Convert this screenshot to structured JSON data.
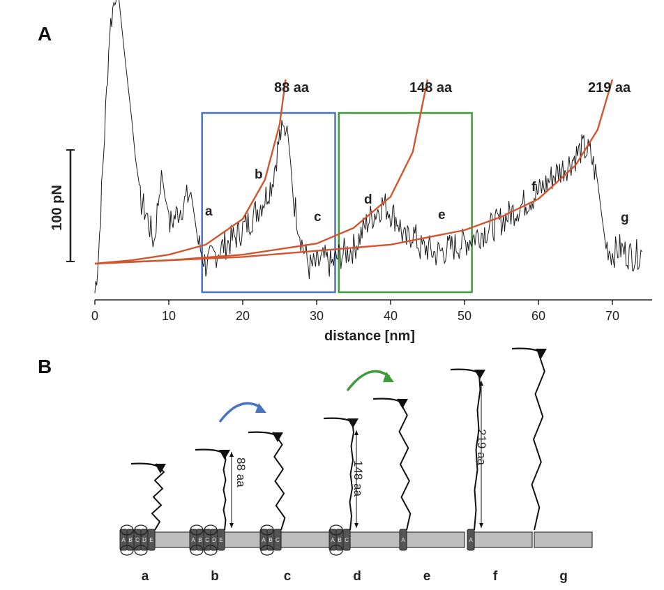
{
  "panelA": {
    "label": "A",
    "scale_bar_label": "100 pN",
    "x_axis_title": "distance [nm]",
    "x_ticks": [
      "0",
      "10",
      "20",
      "30",
      "40",
      "50",
      "60",
      "70"
    ],
    "curve_labels": [
      "88 aa",
      "148 aa",
      "219 aa"
    ],
    "peak_labels": [
      "a",
      "b",
      "c",
      "d",
      "e",
      "f",
      "g"
    ],
    "box_colors": {
      "blue": "#4a74c2",
      "green": "#3e9b3a"
    },
    "curve_color": "#d2552f"
  },
  "panelB": {
    "label": "B",
    "step_labels": [
      "a",
      "b",
      "c",
      "d",
      "e",
      "f",
      "g"
    ],
    "length_labels": [
      "88 aa",
      "148 aa",
      "219 aa"
    ],
    "helix_letters": [
      "A",
      "B",
      "C",
      "D",
      "E"
    ],
    "arrow_colors": {
      "blue": "#4a74c2",
      "green": "#3e9b3a"
    }
  },
  "chart_data": {
    "type": "line",
    "title": "",
    "xlabel": "distance [nm]",
    "ylabel": "",
    "xlim": [
      0,
      75
    ],
    "ylim": [
      -30,
      290
    ],
    "series": [
      {
        "name": "force trace (pN)",
        "x": [
          0,
          0.5,
          2,
          3,
          4,
          5,
          6,
          7,
          8,
          9,
          10,
          11,
          12,
          13,
          14,
          15,
          17,
          19,
          21,
          23,
          24,
          25,
          26,
          27,
          28,
          29,
          30,
          31,
          32,
          33,
          35,
          37,
          39,
          41,
          42,
          43,
          44,
          45,
          46,
          48,
          50,
          52,
          54,
          56,
          58,
          60,
          62,
          64,
          66,
          67,
          68,
          69,
          70,
          71,
          72,
          73,
          74
        ],
        "y": [
          -25,
          10,
          210,
          255,
          190,
          130,
          60,
          45,
          20,
          85,
          35,
          45,
          55,
          65,
          20,
          0,
          15,
          25,
          40,
          60,
          75,
          115,
          125,
          55,
          20,
          -2,
          0,
          5,
          0,
          8,
          15,
          40,
          55,
          40,
          20,
          30,
          15,
          15,
          10,
          15,
          20,
          28,
          35,
          45,
          55,
          65,
          80,
          90,
          105,
          100,
          75,
          20,
          10,
          15,
          10,
          8,
          12
        ]
      },
      {
        "name": "88 aa WLC fit",
        "x": [
          0,
          5,
          10,
          15,
          20,
          23,
          25,
          25.8
        ],
        "y": [
          0,
          3,
          8,
          17,
          40,
          75,
          125,
          165
        ]
      },
      {
        "name": "148 aa WLC fit",
        "x": [
          0,
          10,
          20,
          30,
          35,
          40,
          43,
          45
        ],
        "y": [
          0,
          3,
          8,
          18,
          32,
          60,
          100,
          165
        ]
      },
      {
        "name": "219 aa WLC fit",
        "x": [
          0,
          20,
          40,
          50,
          55,
          60,
          65,
          68,
          70
        ],
        "y": [
          0,
          6,
          17,
          30,
          42,
          58,
          88,
          120,
          165
        ]
      }
    ],
    "regions": [
      {
        "name": "blue box",
        "x": [
          14.5,
          32.5
        ]
      },
      {
        "name": "green box",
        "x": [
          33,
          51
        ]
      }
    ],
    "scale_bar": {
      "value": 100,
      "unit": "pN"
    }
  }
}
